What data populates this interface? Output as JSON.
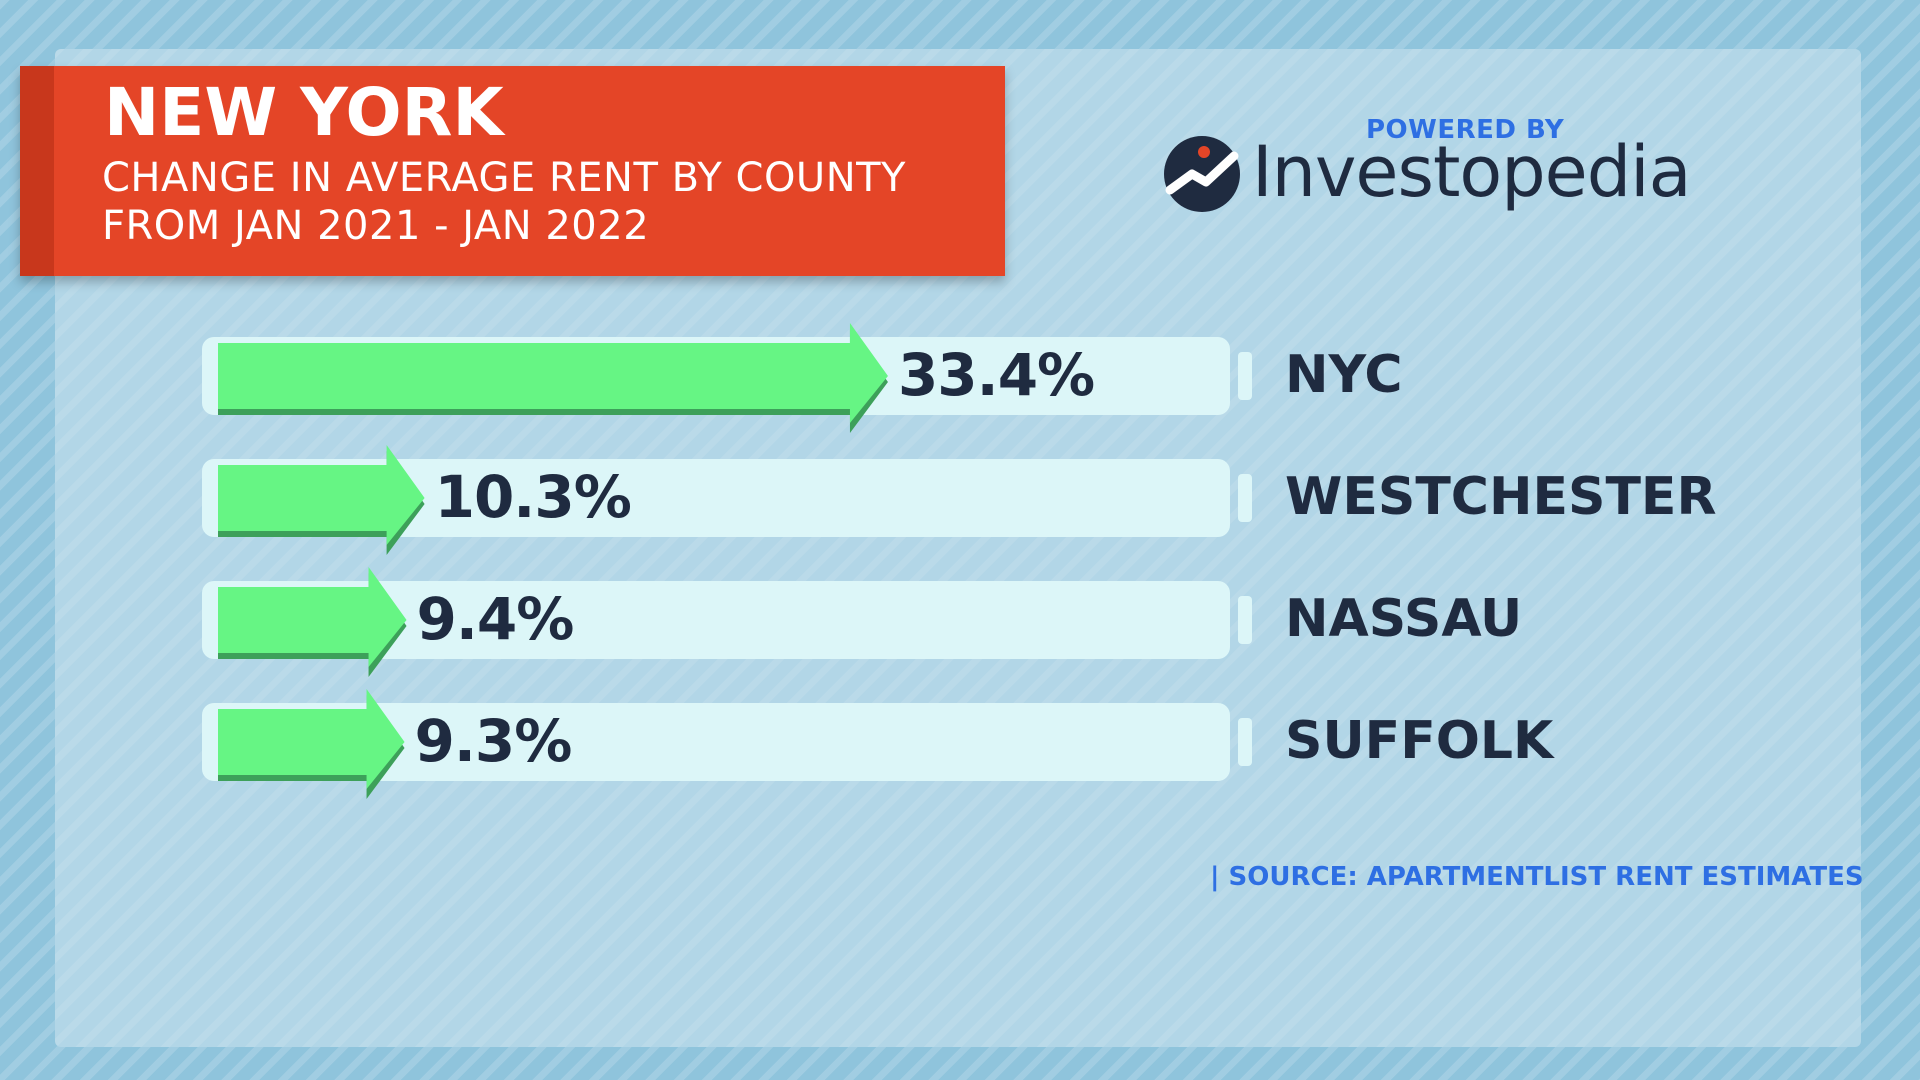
{
  "header": {
    "title": "NEW YORK",
    "subtitle_line1": "CHANGE IN AVERAGE RENT BY COUNTY",
    "subtitle_line2": "FROM JAN 2021 - JAN 2022",
    "accent_color": "#e44527"
  },
  "brand": {
    "powered_by": "POWERED BY",
    "name": "Investopedia",
    "logo_icon": "investopedia-logo-icon",
    "powered_color": "#2e6fe3"
  },
  "source": "| SOURCE: APARTMENTLIST RENT ESTIMATES",
  "chart_data": {
    "type": "bar",
    "orientation": "horizontal",
    "categories": [
      "NYC",
      "WESTCHESTER",
      "NASSAU",
      "SUFFOLK"
    ],
    "values": [
      33.4,
      10.3,
      9.4,
      9.3
    ],
    "value_labels": [
      "33.4%",
      "10.3%",
      "9.4%",
      "9.3%"
    ],
    "title": "NEW YORK",
    "subtitle": "CHANGE IN AVERAGE RENT BY COUNTY FROM JAN 2021 - JAN 2022",
    "xlabel": "",
    "ylabel": "",
    "xlim": [
      0,
      100
    ],
    "grid": false,
    "legend": "none",
    "bar_color": "#66f584",
    "bar_shade_color": "#3da05a",
    "track_color": "#dcf6f8"
  }
}
